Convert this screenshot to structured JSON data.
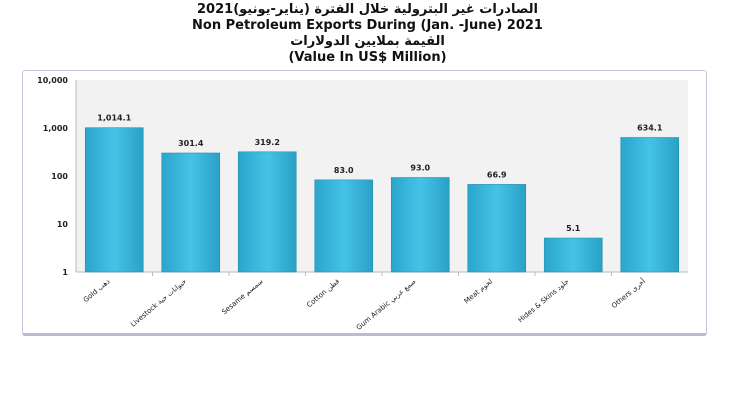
{
  "chart_data": {
    "type": "bar",
    "title_ar": "الصادرات غير البترولية خلال الفترة (يناير-يونيو)2021",
    "title": "Non Petroleum Exports During (Jan. -June) 2021",
    "subtitle_ar": "القيمة بملايين الدولارات",
    "subtitle": "(Value In US$  Million)",
    "categories": [
      "Gold ذهب",
      "Livestock حيوانات حية",
      "Sesame سمسم",
      "Cotton قطن",
      "Gum Arabic صمغ عربي",
      "Meat لحوم",
      "Hides & Skins جلود",
      "Others أخرى"
    ],
    "values": [
      1014.1,
      301.4,
      319.2,
      83.0,
      93.0,
      66.9,
      5.1,
      634.1
    ],
    "data_labels": [
      "1,014.1",
      "301.4",
      "319.2",
      "83.0",
      "93.0",
      "66.9",
      "5.1",
      "634.1"
    ],
    "y_scale": "log",
    "ylim": [
      1,
      10000
    ],
    "y_ticks": [
      1,
      10,
      100,
      1000,
      10000
    ],
    "y_tick_labels": [
      "1",
      "10",
      "100",
      "1,000",
      "10,000"
    ],
    "grid": false,
    "bar_color": "#3ab8dc"
  }
}
